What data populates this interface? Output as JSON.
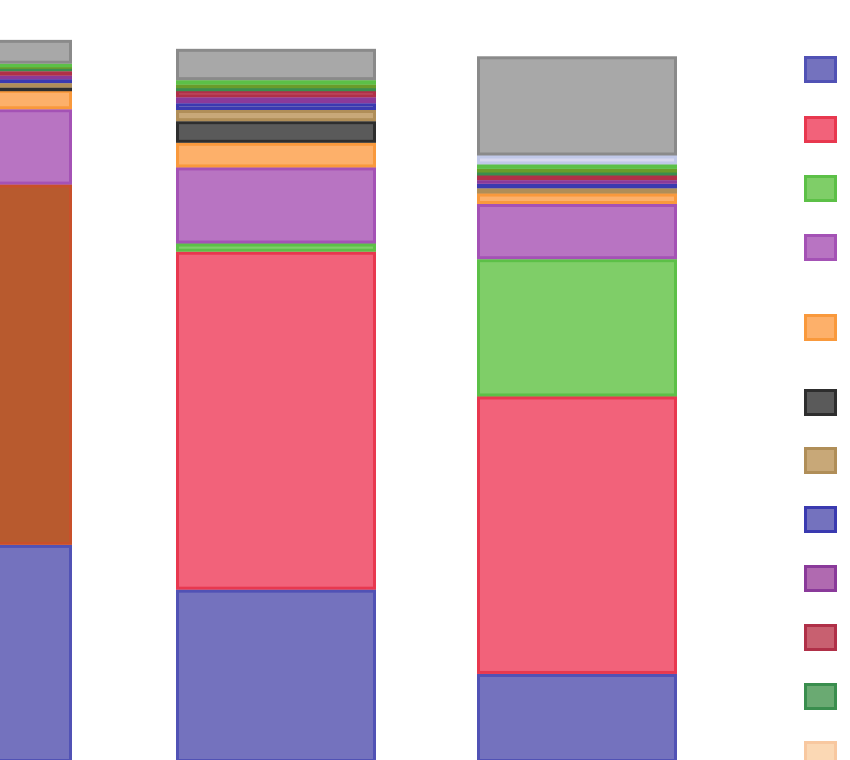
{
  "chart_data": {
    "type": "bar",
    "stacked": true,
    "title": "",
    "xlabel": "",
    "ylabel": "",
    "ylim": [
      0,
      100
    ],
    "grid": false,
    "legend_placement": "right",
    "categories": [
      "",
      "",
      ""
    ],
    "series": [
      {
        "color": "#7472be",
        "border": "#5152b5",
        "values": [
          29.1,
          23.1,
          11.8
        ]
      },
      {
        "color": "#b85a2e",
        "border": "#c8502a",
        "values": [
          48.3,
          0,
          0
        ]
      },
      {
        "color": "#f2627a",
        "border": "#e8384f",
        "values": [
          0,
          45.3,
          37.2
        ]
      },
      {
        "color": "#7fce68",
        "border": "#5cc047",
        "values": [
          0,
          1.1,
          18.4
        ]
      },
      {
        "color": "#b874c2",
        "border": "#a452b5",
        "values": [
          10.1,
          10.2,
          7.4
        ]
      },
      {
        "color": "#fdb06a",
        "border": "#f9993c",
        "values": [
          2.6,
          3.3,
          1.4
        ]
      },
      {
        "color": "#5a5a5a",
        "border": "#2e2e2e",
        "values": [
          0.3,
          2.9,
          0
        ]
      },
      {
        "color": "#c8a878",
        "border": "#b08e58",
        "values": [
          0.6,
          1.5,
          0.7
        ]
      },
      {
        "color": "#7472be",
        "border": "#3a3ab0",
        "values": [
          0.5,
          0.9,
          0.6
        ]
      },
      {
        "color": "#b06ab0",
        "border": "#8a3a9a",
        "values": [
          0.5,
          0.8,
          0.5
        ]
      },
      {
        "color": "#c86070",
        "border": "#b03048",
        "values": [
          0.6,
          0.9,
          0.7
        ]
      },
      {
        "color": "#6aaa72",
        "border": "#3a8e4e",
        "values": [
          0.5,
          0.4,
          0.4
        ]
      },
      {
        "color": "#8aa84a",
        "border": "#6a9c2a",
        "values": [
          0.3,
          0.4,
          0.4
        ]
      },
      {
        "color": "#7fce68",
        "border": "#5cc047",
        "values": [
          0.2,
          0.6,
          0.6
        ]
      },
      {
        "color": "#d8d8f0",
        "border": "#c0c8e8",
        "values": [
          0,
          0,
          1.2
        ]
      },
      {
        "color": "#a8a8a8",
        "border": "#8a8a8a",
        "values": [
          3.2,
          4.2,
          13.3
        ]
      }
    ],
    "legend": [
      {
        "color": "#7472be",
        "border": "#5152b5"
      },
      {
        "color": "#f2627a",
        "border": "#e8384f"
      },
      {
        "color": "#7fce68",
        "border": "#5cc047"
      },
      {
        "color": "#b874c2",
        "border": "#a452b5"
      },
      {
        "color": "#fdb06a",
        "border": "#f9993c"
      },
      {
        "color": "#5a5a5a",
        "border": "#2e2e2e"
      },
      {
        "color": "#c8a878",
        "border": "#b08e58"
      },
      {
        "color": "#7472be",
        "border": "#3a3ab0"
      },
      {
        "color": "#b06ab0",
        "border": "#8a3a9a"
      },
      {
        "color": "#c86070",
        "border": "#b03048"
      },
      {
        "color": "#6aaa72",
        "border": "#3a8e4e"
      },
      {
        "color": "#fbd8b4",
        "border": "#f8c8a0"
      }
    ]
  }
}
